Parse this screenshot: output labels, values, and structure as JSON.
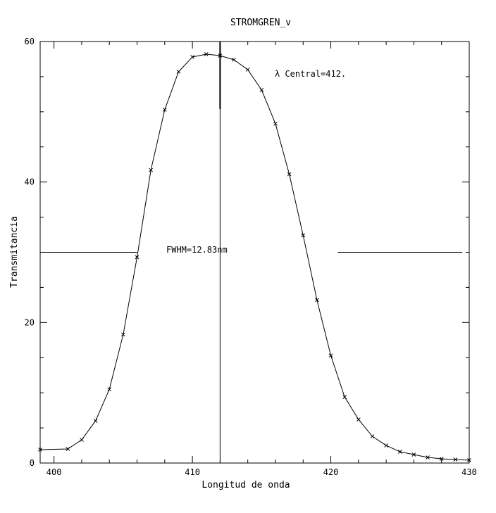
{
  "chart_data": {
    "type": "line",
    "title": "STROMGREN_v",
    "xlabel": "Longitud de onda",
    "ylabel": "Transmitancia",
    "xlim": [
      399,
      430
    ],
    "ylim": [
      0,
      60
    ],
    "x_ticks": [
      400,
      410,
      420,
      430
    ],
    "x_tick_labels": [
      "400",
      "410",
      "420",
      "430"
    ],
    "y_ticks": [
      0,
      20,
      40,
      60
    ],
    "y_tick_labels": [
      "0",
      "20",
      "40",
      "60"
    ],
    "grid": false,
    "legend": "none",
    "series": [
      {
        "x": [
          399,
          401,
          402,
          403,
          404,
          405,
          406,
          407,
          408,
          409,
          410,
          411,
          412,
          413,
          414,
          415,
          416,
          417,
          418,
          419,
          420,
          421,
          422,
          423,
          424,
          425,
          426,
          427,
          428,
          429,
          430
        ],
        "y": [
          1.9,
          2.0,
          3.3,
          6.0,
          10.5,
          18.3,
          29.3,
          41.7,
          50.3,
          55.7,
          57.8,
          58.2,
          58.0,
          57.4,
          56.0,
          53.1,
          48.3,
          41.1,
          32.4,
          23.2,
          15.3,
          9.4,
          6.2,
          3.8,
          2.5,
          1.6,
          1.2,
          0.8,
          0.6,
          0.5,
          0.4
        ]
      }
    ],
    "central_wavelength": 412,
    "half_max": 30,
    "annotations": {
      "central": "λ Central=412.",
      "fwhm": "FWHM=12.83nm"
    }
  }
}
